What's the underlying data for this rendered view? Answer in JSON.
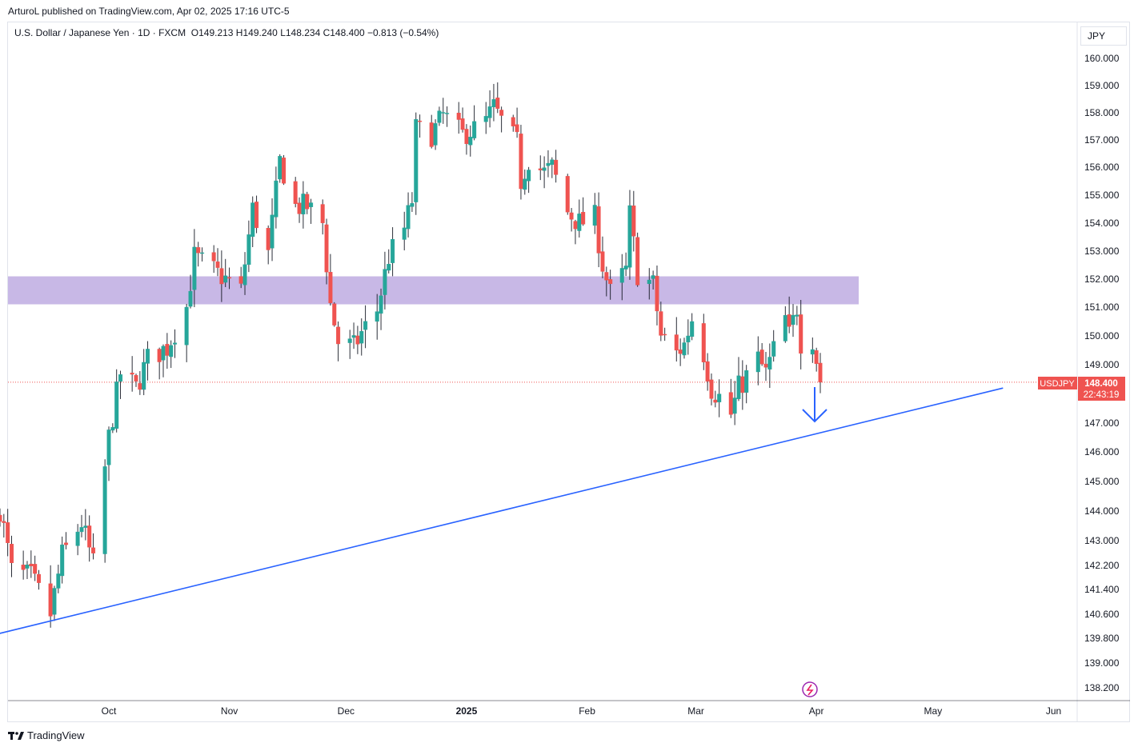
{
  "header": {
    "publisher": "ArturoL published on TradingView.com, Apr 02, 2025 17:16 UTC-5"
  },
  "legend": {
    "symbol_name": "U.S. Dollar / Japanese Yen · 1D · FXCM",
    "ohlc": "O149.213  H149.240  L148.234  C148.400  −0.813 (−0.54%)"
  },
  "currency_label": "JPY",
  "price_tag": {
    "symbol": "USDJPY",
    "price": "148.400",
    "countdown": "22:43:19"
  },
  "footer": {
    "brand": "TradingView"
  },
  "colors": {
    "up": "#26a69a",
    "down": "#ef5350",
    "zone": "#c8b8e6",
    "trendline": "#2962ff",
    "price_line": "#ef5350"
  },
  "chart_data": {
    "type": "candlestick",
    "price_axis_ticks": [
      "160.000",
      "159.000",
      "158.000",
      "157.000",
      "156.000",
      "155.000",
      "154.000",
      "153.000",
      "152.000",
      "151.000",
      "150.000",
      "149.000",
      "147.000",
      "146.000",
      "145.000",
      "144.000",
      "143.000",
      "142.200",
      "141.400",
      "140.600",
      "139.800",
      "139.000",
      "138.200"
    ],
    "time_axis_labels": [
      "Oct",
      "Nov",
      "Dec",
      "2025",
      "Feb",
      "Mar",
      "Apr",
      "May",
      "Jun"
    ],
    "last_price": 148.4,
    "resistance_zone": [
      151.1,
      152.1
    ],
    "trendline": {
      "start": {
        "date": "2024-09-01",
        "price": 139.9
      },
      "end": {
        "date": "2025-05-19",
        "price": 148.2
      }
    },
    "close_path": [
      {
        "date": "2024-09-03",
        "close": 144.1
      },
      {
        "date": "2024-09-06",
        "close": 142.0
      },
      {
        "date": "2024-09-11",
        "close": 141.8
      },
      {
        "date": "2024-09-16",
        "close": 140.6
      },
      {
        "date": "2024-09-19",
        "close": 142.5
      },
      {
        "date": "2024-09-24",
        "close": 143.6
      },
      {
        "date": "2024-09-27",
        "close": 142.2
      },
      {
        "date": "2024-10-01",
        "close": 146.5
      },
      {
        "date": "2024-10-04",
        "close": 148.7
      },
      {
        "date": "2024-10-08",
        "close": 148.2
      },
      {
        "date": "2024-10-11",
        "close": 149.2
      },
      {
        "date": "2024-10-16",
        "close": 149.6
      },
      {
        "date": "2024-10-21",
        "close": 151.0
      },
      {
        "date": "2024-10-23",
        "close": 152.8
      },
      {
        "date": "2024-10-28",
        "close": 152.3
      },
      {
        "date": "2024-10-31",
        "close": 152.0
      },
      {
        "date": "2024-11-04",
        "close": 151.6
      },
      {
        "date": "2024-11-07",
        "close": 154.5
      },
      {
        "date": "2024-11-11",
        "close": 152.9
      },
      {
        "date": "2024-11-14",
        "close": 156.2
      },
      {
        "date": "2024-11-18",
        "close": 154.6
      },
      {
        "date": "2024-11-21",
        "close": 154.6
      },
      {
        "date": "2024-11-25",
        "close": 154.0
      },
      {
        "date": "2024-11-27",
        "close": 151.1
      },
      {
        "date": "2024-11-29",
        "close": 149.8
      },
      {
        "date": "2024-12-03",
        "close": 149.6
      },
      {
        "date": "2024-12-05",
        "close": 150.1
      },
      {
        "date": "2024-12-09",
        "close": 150.9
      },
      {
        "date": "2024-12-12",
        "close": 152.8
      },
      {
        "date": "2024-12-16",
        "close": 153.8
      },
      {
        "date": "2024-12-18",
        "close": 154.8
      },
      {
        "date": "2024-12-19",
        "close": 157.4
      },
      {
        "date": "2024-12-23",
        "close": 157.2
      },
      {
        "date": "2024-12-26",
        "close": 157.9
      },
      {
        "date": "2024-12-31",
        "close": 157.2
      },
      {
        "date": "2025-01-03",
        "close": 157.4
      },
      {
        "date": "2025-01-06",
        "close": 157.7
      },
      {
        "date": "2025-01-08",
        "close": 158.2
      },
      {
        "date": "2025-01-10",
        "close": 157.7
      },
      {
        "date": "2025-01-14",
        "close": 156.9
      },
      {
        "date": "2025-01-15",
        "close": 155.5
      },
      {
        "date": "2025-01-17",
        "close": 156.3
      },
      {
        "date": "2025-01-21",
        "close": 155.8
      },
      {
        "date": "2025-01-23",
        "close": 156.0
      },
      {
        "date": "2025-01-27",
        "close": 154.4
      },
      {
        "date": "2025-01-30",
        "close": 154.0
      },
      {
        "date": "2025-02-03",
        "close": 154.2
      },
      {
        "date": "2025-02-05",
        "close": 152.5
      },
      {
        "date": "2025-02-07",
        "close": 151.5
      },
      {
        "date": "2025-02-11",
        "close": 152.3
      },
      {
        "date": "2025-02-12",
        "close": 154.3
      },
      {
        "date": "2025-02-14",
        "close": 152.2
      },
      {
        "date": "2025-02-18",
        "close": 151.8
      },
      {
        "date": "2025-02-20",
        "close": 150.0
      },
      {
        "date": "2025-02-24",
        "close": 149.4
      },
      {
        "date": "2025-02-26",
        "close": 149.7
      },
      {
        "date": "2025-02-28",
        "close": 150.6
      },
      {
        "date": "2025-03-03",
        "close": 149.4
      },
      {
        "date": "2025-03-05",
        "close": 148.2
      },
      {
        "date": "2025-03-07",
        "close": 147.9
      },
      {
        "date": "2025-03-10",
        "close": 147.3
      },
      {
        "date": "2025-03-12",
        "close": 148.2
      },
      {
        "date": "2025-03-14",
        "close": 148.6
      },
      {
        "date": "2025-03-17",
        "close": 149.2
      },
      {
        "date": "2025-03-19",
        "close": 148.7
      },
      {
        "date": "2025-03-21",
        "close": 149.5
      },
      {
        "date": "2025-03-24",
        "close": 150.6
      },
      {
        "date": "2025-03-25",
        "close": 150.0
      },
      {
        "date": "2025-03-27",
        "close": 151.0
      },
      {
        "date": "2025-03-28",
        "close": 149.8
      },
      {
        "date": "2025-03-31",
        "close": 149.9
      },
      {
        "date": "2025-04-01",
        "close": 149.2
      },
      {
        "date": "2025-04-02",
        "close": 148.4
      }
    ]
  }
}
